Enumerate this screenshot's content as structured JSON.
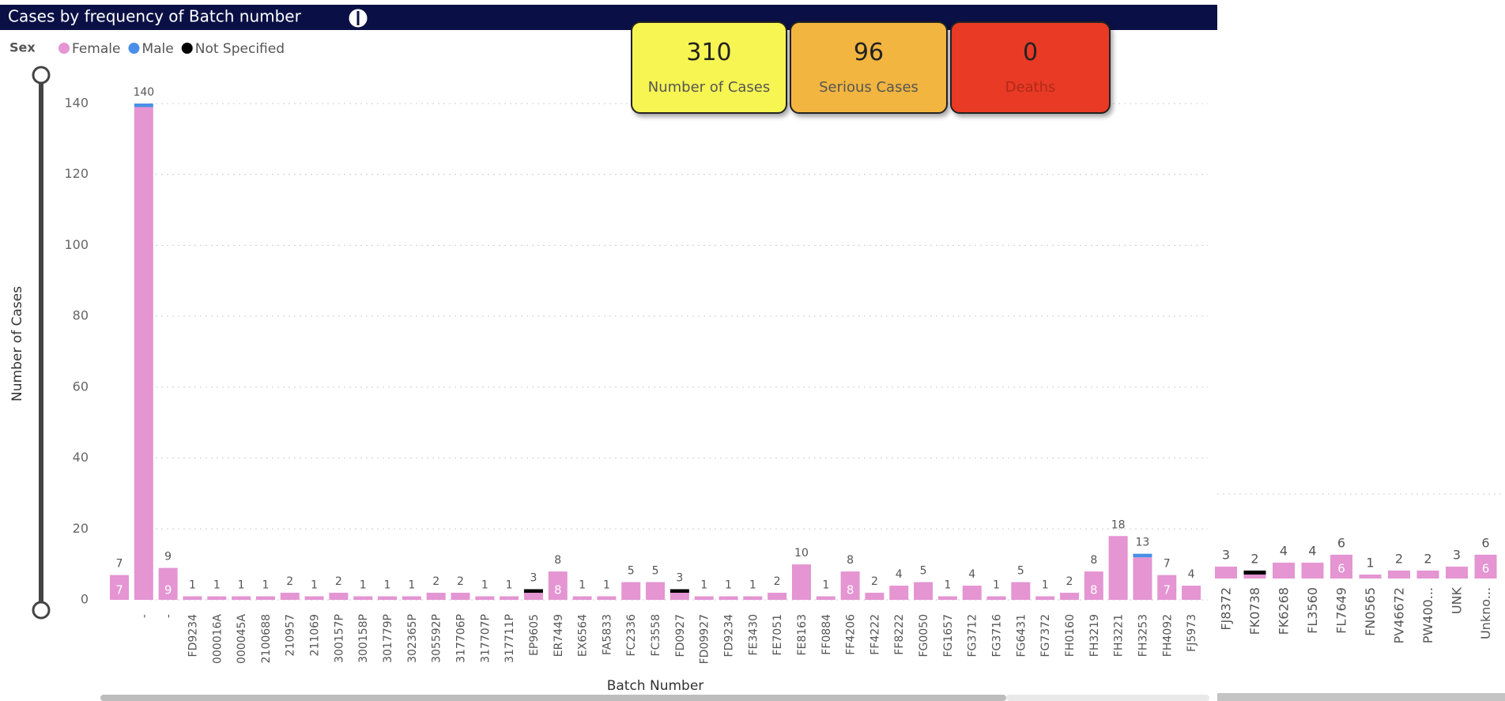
{
  "title": "Cases by frequency of Batch number",
  "cards": [
    {
      "value": 310,
      "label": "Number of Cases",
      "color": "#f7f552"
    },
    {
      "value": 96,
      "label": "Serious Cases",
      "color": "#f2b53f"
    },
    {
      "value": 0,
      "label": "Deaths",
      "color": "#e83a25"
    }
  ],
  "chart_data": [
    {
      "type": "bar",
      "stacked": true,
      "legend_title": "Sex",
      "x_label": "Batch Number",
      "y_label": "Number of Cases",
      "ylim": [
        0,
        140
      ],
      "yticks": [
        0,
        20,
        40,
        60,
        80,
        100,
        120,
        140
      ],
      "grid": true,
      "categories": [
        null,
        "-",
        "-",
        "FD9234",
        "000016A",
        "000045A",
        "2100688",
        "210957",
        "211069",
        "300157P",
        "300158P",
        "301779P",
        "302365P",
        "305592P",
        "317706P",
        "317707P",
        "317711P",
        "EP9605",
        "ER7449",
        "EX6564",
        "FA5833",
        "FC2336",
        "FC3558",
        "FD0927",
        "FD09927",
        "FD9234",
        "FE3430",
        "FE7051",
        "FE8163",
        "FF0884",
        "FF4206",
        "FF4222",
        "FF8222",
        "FG0050",
        "FG1657",
        "FG3712",
        "FG3716",
        "FG6431",
        "FG7372",
        "FH0160",
        "FH3219",
        "FH3221",
        "FH3253",
        "FH4092",
        "FJ5973"
      ],
      "totals": [
        7,
        140,
        9,
        1,
        1,
        1,
        1,
        2,
        1,
        2,
        1,
        1,
        1,
        2,
        2,
        1,
        1,
        3,
        8,
        1,
        1,
        5,
        5,
        3,
        1,
        1,
        1,
        2,
        10,
        1,
        8,
        2,
        4,
        5,
        1,
        4,
        1,
        5,
        1,
        2,
        8,
        18,
        13,
        7,
        4
      ],
      "series": [
        {
          "name": "Female",
          "color": "#e495d2",
          "values": [
            7,
            139,
            9,
            1,
            1,
            1,
            1,
            2,
            1,
            2,
            1,
            1,
            1,
            2,
            2,
            1,
            1,
            2,
            8,
            1,
            1,
            5,
            5,
            2,
            1,
            1,
            1,
            2,
            10,
            1,
            8,
            2,
            4,
            5,
            1,
            4,
            1,
            5,
            1,
            2,
            8,
            18,
            12,
            7,
            4
          ],
          "value_labels": [
            "7",
            null,
            "9",
            null,
            null,
            null,
            null,
            null,
            null,
            null,
            null,
            null,
            null,
            null,
            null,
            null,
            null,
            null,
            "8",
            null,
            null,
            null,
            null,
            null,
            null,
            null,
            null,
            null,
            null,
            null,
            "8",
            null,
            null,
            null,
            null,
            null,
            null,
            null,
            null,
            null,
            "8",
            null,
            null,
            "7",
            null
          ]
        },
        {
          "name": "Male",
          "color": "#4a8fe7",
          "values": [
            0,
            1,
            0,
            0,
            0,
            0,
            0,
            0,
            0,
            0,
            0,
            0,
            0,
            0,
            0,
            0,
            0,
            0,
            0,
            0,
            0,
            0,
            0,
            0,
            0,
            0,
            0,
            0,
            0,
            0,
            0,
            0,
            0,
            0,
            0,
            0,
            0,
            0,
            0,
            0,
            0,
            0,
            1,
            0,
            0
          ]
        },
        {
          "name": "Not Specified",
          "color": "#000000",
          "values": [
            0,
            0,
            0,
            0,
            0,
            0,
            0,
            0,
            0,
            0,
            0,
            0,
            0,
            0,
            0,
            0,
            0,
            1,
            0,
            0,
            0,
            0,
            0,
            1,
            0,
            0,
            0,
            0,
            0,
            0,
            0,
            0,
            0,
            0,
            0,
            0,
            0,
            0,
            0,
            0,
            0,
            0,
            0,
            0,
            0
          ]
        }
      ]
    },
    {
      "type": "bar",
      "stacked": true,
      "categories": [
        "FJ8372",
        "FK0738",
        "FK6268",
        "FL3560",
        "FL7649",
        "FN0565",
        "PV46672",
        "PW400...",
        "UNK",
        "Unkno..."
      ],
      "totals": [
        3,
        2,
        4,
        4,
        6,
        1,
        2,
        2,
        3,
        6
      ],
      "series": [
        {
          "name": "Female",
          "color": "#e495d2",
          "values": [
            3,
            1,
            4,
            4,
            6,
            1,
            2,
            2,
            3,
            6
          ],
          "value_labels": [
            null,
            null,
            null,
            null,
            "6",
            null,
            null,
            null,
            null,
            "6"
          ]
        },
        {
          "name": "Male",
          "color": "#4a8fe7",
          "values": [
            0,
            0,
            0,
            0,
            0,
            0,
            0,
            0,
            0,
            0
          ]
        },
        {
          "name": "Not Specified",
          "color": "#000000",
          "values": [
            0,
            1,
            0,
            0,
            0,
            0,
            0,
            0,
            0,
            0
          ]
        }
      ]
    }
  ]
}
